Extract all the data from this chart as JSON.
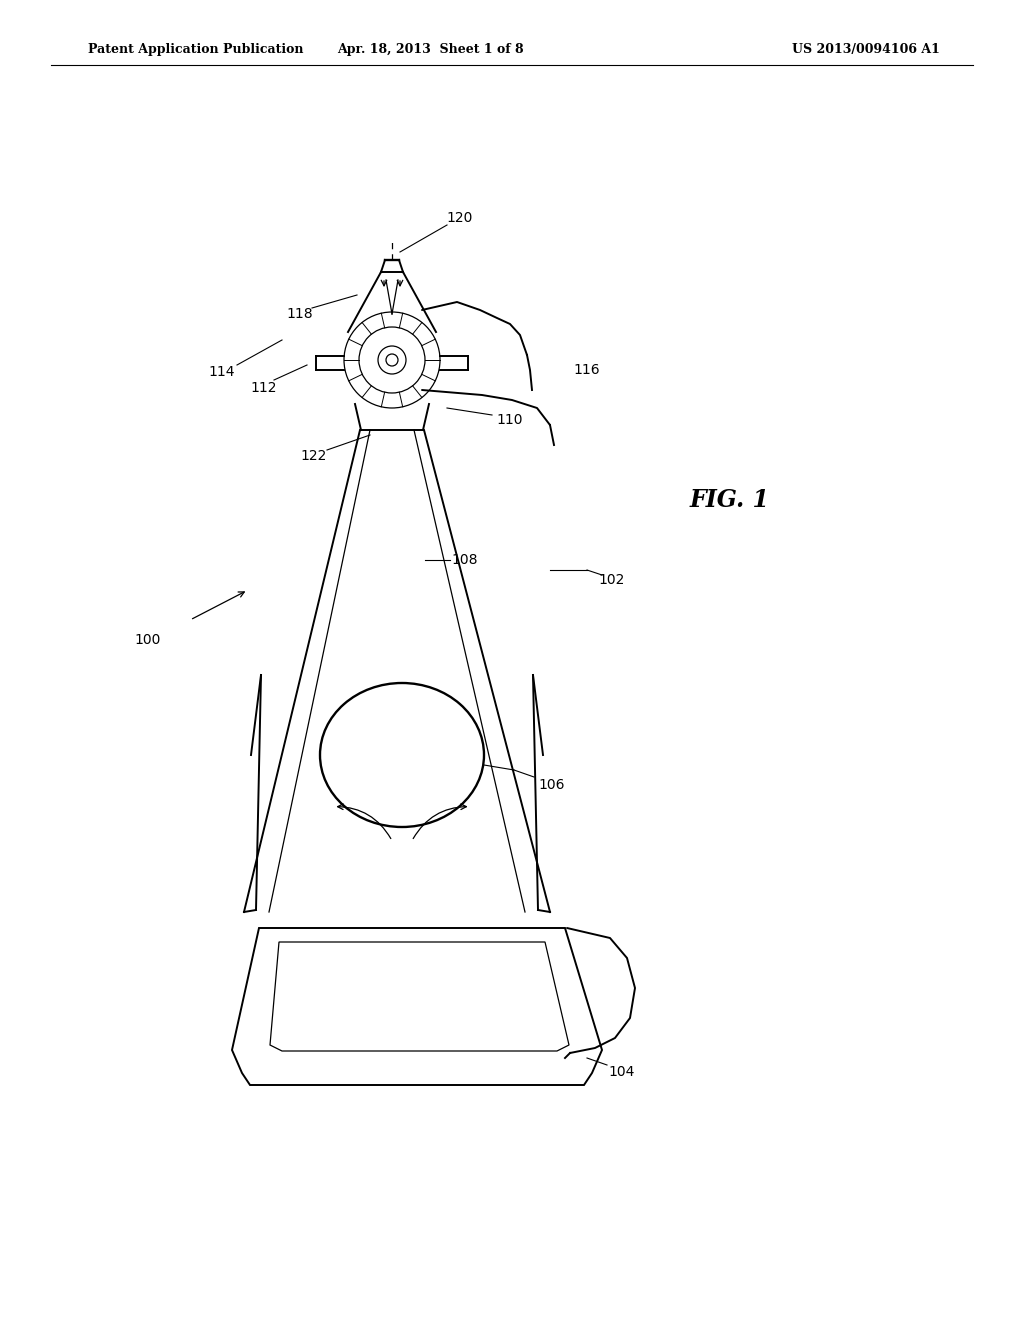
{
  "background_color": "#ffffff",
  "header_left": "Patent Application Publication",
  "header_center": "Apr. 18, 2013  Sheet 1 of 8",
  "header_right": "US 2013/0094106 A1",
  "fig_label": "FIG. 1",
  "lw": 1.4,
  "lw_thin": 0.9,
  "label_fs": 10,
  "fig_label_fs": 17
}
